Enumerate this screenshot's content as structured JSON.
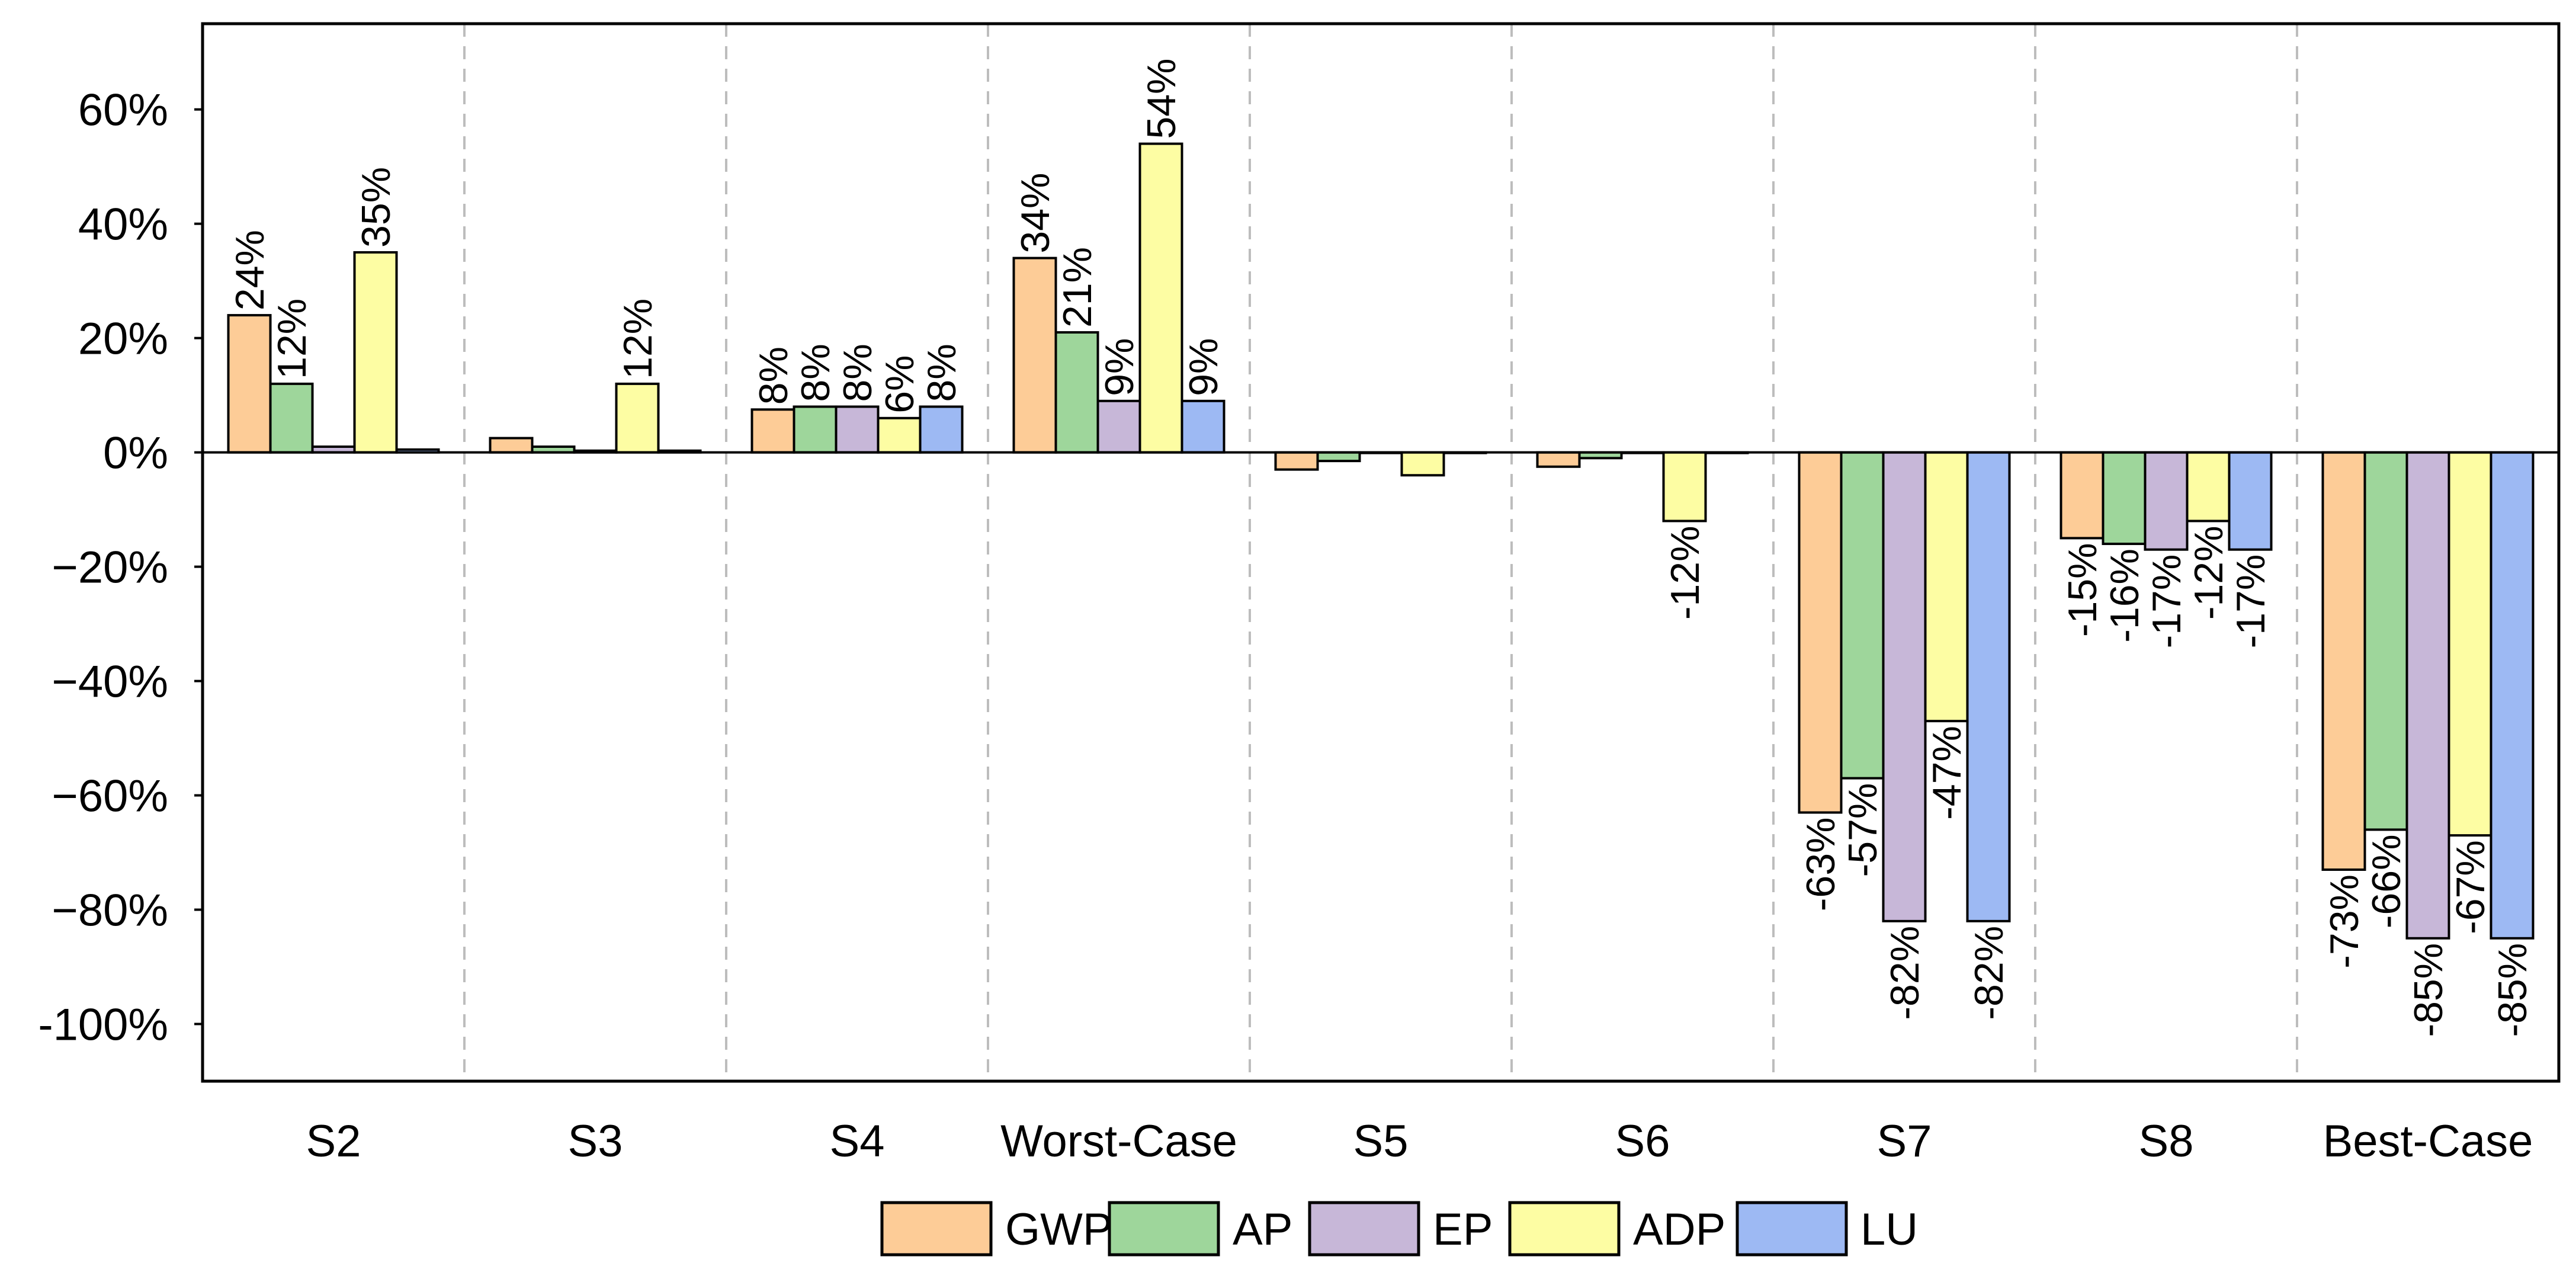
{
  "chart_data": {
    "type": "bar",
    "title": "",
    "xlabel": "",
    "ylabel": "",
    "categories": [
      "S2",
      "S3",
      "S4",
      "Worst-Case",
      "S5",
      "S6",
      "S7",
      "S8",
      "Best-Case"
    ],
    "ylim": [
      -110,
      75
    ],
    "yticks": [
      60,
      40,
      20,
      0,
      -20,
      -40,
      -60,
      -80,
      -100
    ],
    "ytick_labels": [
      "60%",
      "40%",
      "20%",
      "0%",
      "−20%",
      "−40%",
      "−60%",
      "−80%",
      "-100%"
    ],
    "grid": "vertical dashed separators between categories",
    "legend_position": "bottom-center",
    "series": [
      {
        "name": "GWP",
        "color": "#FDCC97",
        "values": [
          24,
          2.5,
          7.5,
          34,
          -3,
          -2.5,
          -63,
          -15,
          -73
        ],
        "labels": [
          "24%",
          "",
          "8%",
          "34%",
          "",
          "",
          "-63%",
          "-15%",
          "-73%"
        ]
      },
      {
        "name": "AP",
        "color": "#9ED69B",
        "values": [
          12,
          1,
          8,
          21,
          -1.5,
          -1,
          -57,
          -16,
          -66
        ],
        "labels": [
          "12%",
          "",
          "8%",
          "21%",
          "",
          "",
          "-57%",
          "-16%",
          "-66%"
        ]
      },
      {
        "name": "EP",
        "color": "#C7B7D8",
        "values": [
          1,
          0.3,
          8,
          9,
          0,
          0,
          -82,
          -17,
          -85
        ],
        "labels": [
          "",
          "",
          "8%",
          "9%",
          "",
          "",
          "-82%",
          "-17%",
          "-85%"
        ]
      },
      {
        "name": "ADP",
        "color": "#FDFDA3",
        "values": [
          35,
          12,
          6,
          54,
          -4,
          -12,
          -47,
          -12,
          -67
        ],
        "labels": [
          "35%",
          "12%",
          "6%",
          "54%",
          "",
          "-12%",
          "-47%",
          "-12%",
          "-67%"
        ]
      },
      {
        "name": "LU",
        "color": "#9DB9F3",
        "values": [
          0.5,
          0.3,
          8,
          9,
          0,
          0,
          -82,
          -17,
          -85
        ],
        "labels": [
          "",
          "",
          "8%",
          "9%",
          "",
          "",
          "-82%",
          "-17%",
          "-85%"
        ]
      }
    ]
  }
}
